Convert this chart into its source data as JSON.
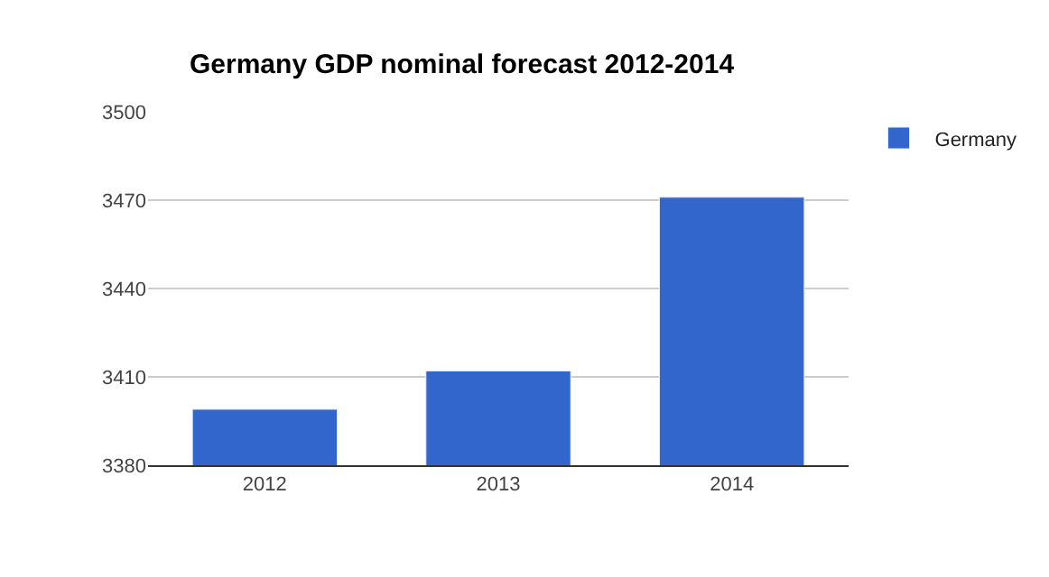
{
  "chart_data": {
    "type": "bar",
    "title": "Germany GDP nominal forecast 2012-2014",
    "categories": [
      "2012",
      "2013",
      "2014"
    ],
    "series": [
      {
        "name": "Germany",
        "color": "#3366cc",
        "values": [
          3399,
          3412,
          3471
        ]
      }
    ],
    "ylim": [
      3380,
      3500
    ],
    "yticks": [
      3380,
      3410,
      3440,
      3470,
      3500
    ],
    "grid": "y",
    "legend": "top right"
  }
}
